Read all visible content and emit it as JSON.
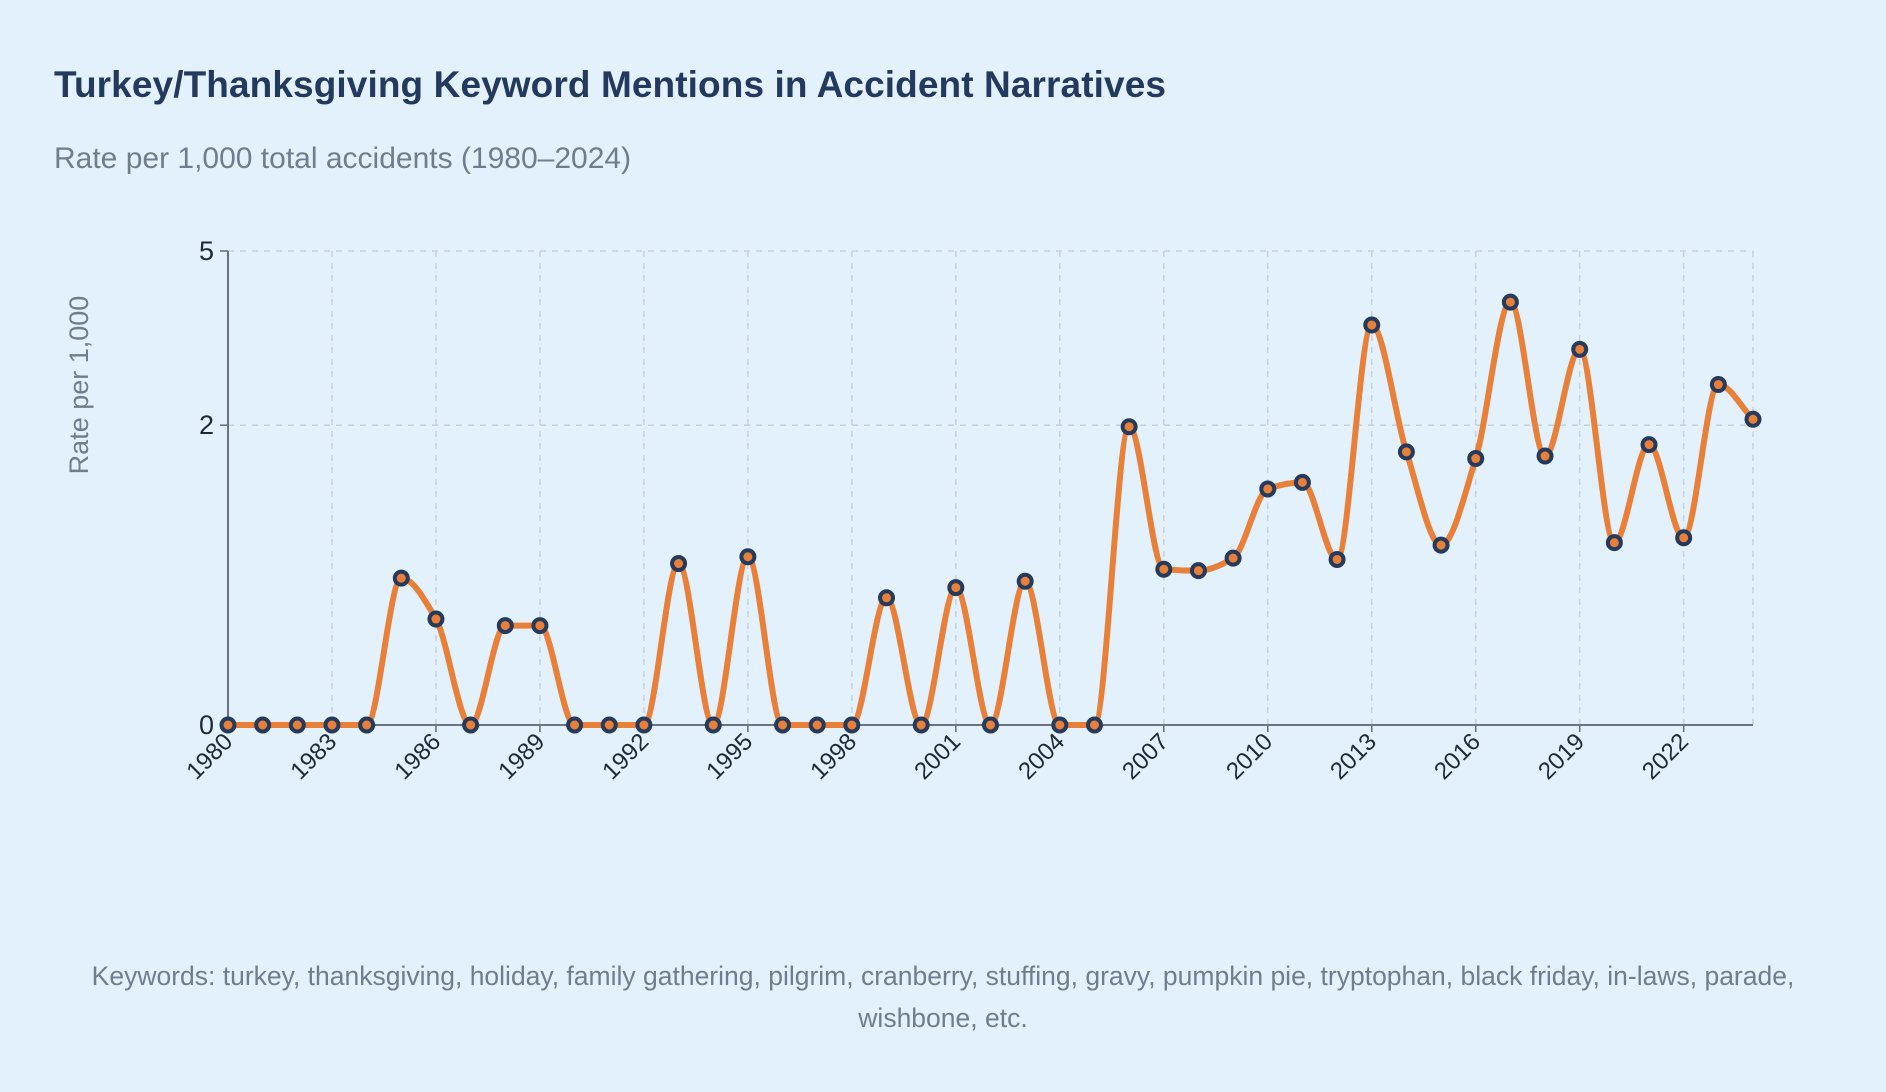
{
  "chart_data": {
    "type": "line",
    "title": "Turkey/Thanksgiving Keyword Mentions in Accident Narratives",
    "subtitle": "Rate per 1,000 total accidents (1980–2024)",
    "xlabel": "",
    "ylabel": "Rate per 1,000",
    "x": [
      1980,
      1981,
      1982,
      1983,
      1984,
      1985,
      1986,
      1987,
      1988,
      1989,
      1990,
      1991,
      1992,
      1993,
      1994,
      1995,
      1996,
      1997,
      1998,
      1999,
      2000,
      2001,
      2002,
      2003,
      2004,
      2005,
      2006,
      2007,
      2008,
      2009,
      2010,
      2011,
      2012,
      2013,
      2014,
      2015,
      2016,
      2017,
      2018,
      2019,
      2020,
      2021,
      2022,
      2023,
      2024
    ],
    "series": [
      {
        "name": "Rate per 1,000",
        "values": [
          0,
          0,
          0,
          0,
          0,
          0.48,
          0.25,
          0,
          0.22,
          0.22,
          0,
          0,
          0,
          0.58,
          0,
          0.63,
          0,
          0,
          0,
          0.36,
          0,
          0.42,
          0,
          0.46,
          0,
          0,
          1.98,
          0.54,
          0.53,
          0.62,
          1.24,
          1.31,
          0.61,
          3.56,
          1.66,
          0.72,
          1.58,
          3.98,
          1.61,
          3.14,
          0.74,
          1.75,
          0.78,
          2.58,
          2.08
        ]
      }
    ],
    "x_ticks": [
      "1980",
      "1983",
      "1986",
      "1989",
      "1992",
      "1995",
      "1998",
      "2001",
      "2004",
      "2007",
      "2010",
      "2013",
      "2016",
      "2019",
      "2022"
    ],
    "y_ticks": [
      "0",
      "2",
      "5"
    ],
    "xlim": [
      1980,
      2024
    ],
    "ylim": [
      0,
      5
    ],
    "grid": true,
    "colors": {
      "line": "#e8803a",
      "marker_fill": "#e8803a",
      "marker_stroke": "#263b5c",
      "grid": "#c9d2dc",
      "axis": "#6b7280"
    },
    "footnote": "Keywords: turkey, thanksgiving, holiday, family gathering, pilgrim, cranberry, stuffing, gravy, pumpkin pie, tryptophan, black friday, in-laws, parade, wishbone, etc."
  }
}
